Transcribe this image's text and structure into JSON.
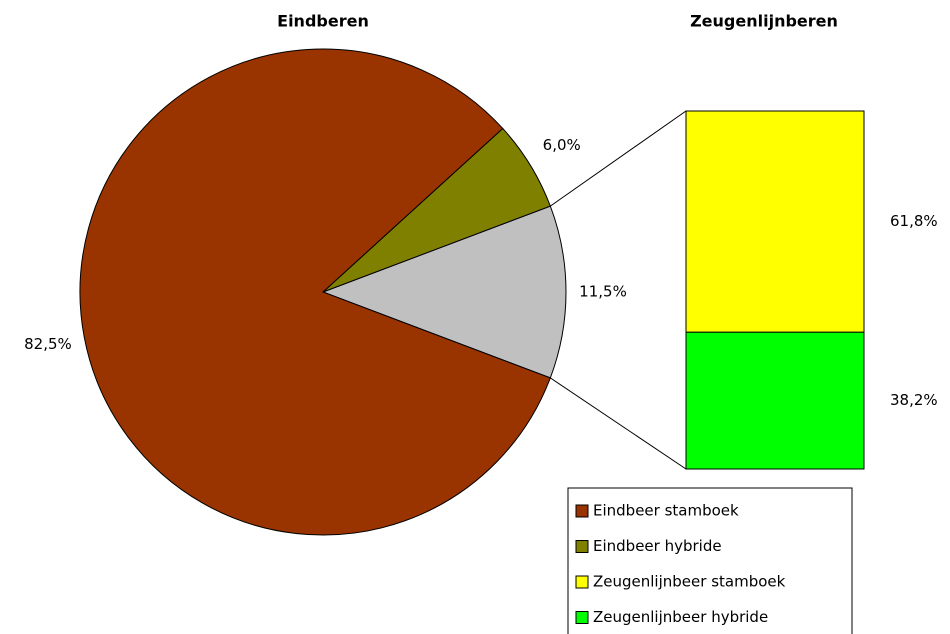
{
  "chart_data": [
    {
      "type": "pie",
      "title": "Eindberen",
      "categories": [
        "Eindbeer stamboek",
        "Eindbeer hybride",
        null
      ],
      "values": [
        82.5,
        6.0,
        11.5
      ],
      "value_labels": [
        "82,5%",
        "6,0%",
        "11,5%"
      ],
      "colors": [
        "#993300",
        "#808000",
        "#c0c0c0"
      ]
    },
    {
      "type": "bar",
      "title": "Zeugenlijnberen",
      "categories": [
        "Zeugenlijnbeer stamboek",
        "Zeugenlijnbeer hybride"
      ],
      "values": [
        61.8,
        38.2
      ],
      "value_labels": [
        "61,8%",
        "38,2%"
      ],
      "colors": [
        "#ffff00",
        "#00ff00"
      ]
    }
  ]
}
